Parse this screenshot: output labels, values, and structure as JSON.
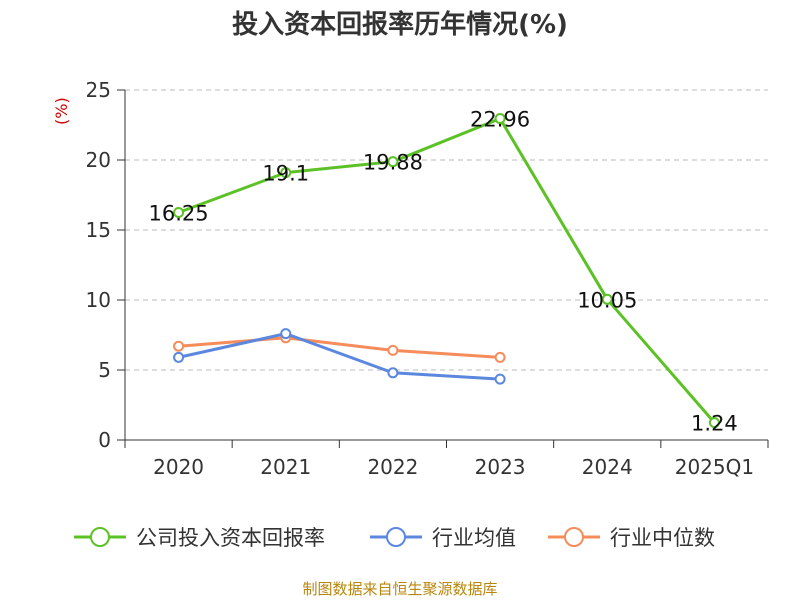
{
  "title": "投入资本回报率历年情况(%)",
  "unit": "(%)",
  "source": "制图数据来自恒生聚源数据库",
  "colors": {
    "company": "#5cc125",
    "industry_avg": "#5b87de",
    "industry_median": "#f58c5a",
    "axis": "#333333",
    "grid": "#bbbbbb"
  },
  "chart_data": {
    "type": "line",
    "title": "投入资本回报率历年情况(%)",
    "xlabel": "",
    "ylabel": "(%)",
    "categories": [
      "2020",
      "2021",
      "2022",
      "2023",
      "2024",
      "2025Q1"
    ],
    "ylim": [
      0,
      25
    ],
    "yticks": [
      0,
      5,
      10,
      15,
      20,
      25
    ],
    "grid": true,
    "legend_position": "bottom",
    "series": [
      {
        "name": "公司投入资本回报率",
        "values": [
          16.25,
          19.1,
          19.88,
          22.96,
          10.05,
          1.24
        ],
        "labels": [
          "16.25",
          "19.1",
          "19.88",
          "22.96",
          "10.05",
          "1.24"
        ]
      },
      {
        "name": "行业均值",
        "values": [
          5.9,
          7.6,
          4.8,
          4.35,
          null,
          null
        ]
      },
      {
        "name": "行业中位数",
        "values": [
          6.7,
          7.3,
          6.4,
          5.9,
          null,
          null
        ]
      }
    ]
  }
}
